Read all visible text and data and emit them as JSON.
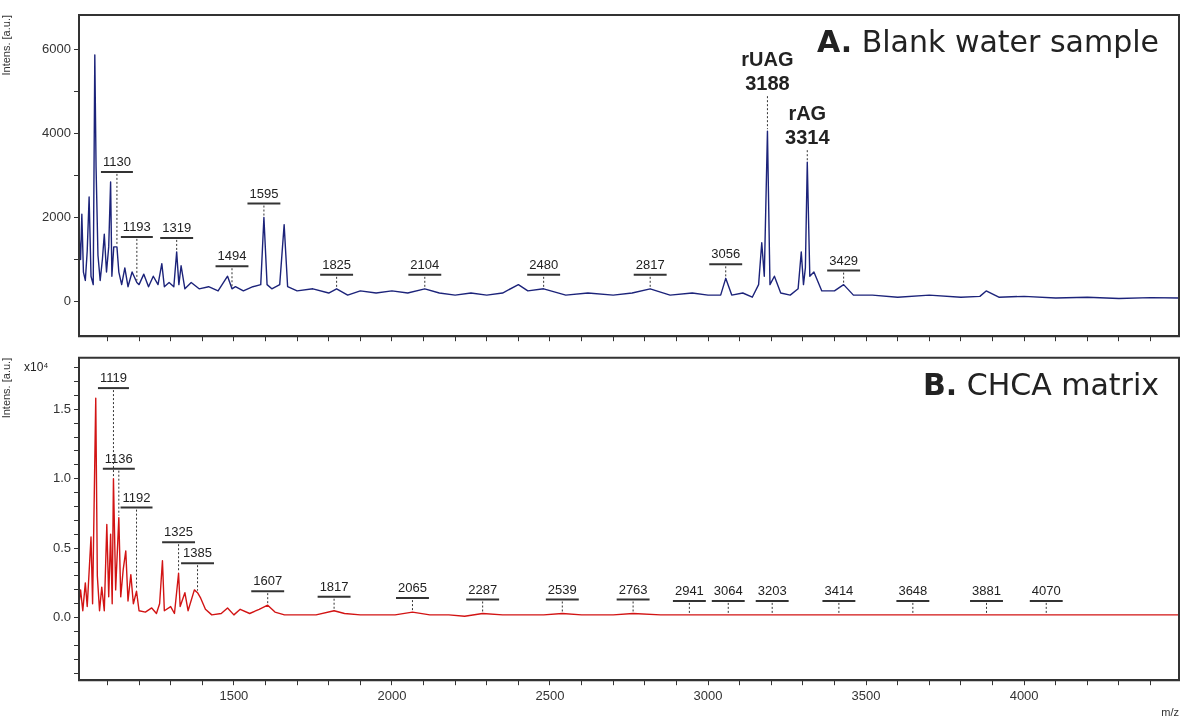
{
  "chart_data": [
    {
      "type": "line",
      "title": "A. Blank water sample",
      "ylabel": "Intens. [a.u.]",
      "xlim": [
        1010,
        4490
      ],
      "ylim": [
        -830,
        6830
      ],
      "xticks": [
        {
          "value": 1100,
          "label": null
        },
        {
          "value": 1200,
          "label": null
        },
        {
          "value": 1300,
          "label": null
        },
        {
          "value": 1400,
          "label": null
        },
        {
          "value": 1500,
          "label": null
        },
        {
          "value": 1600,
          "label": null
        },
        {
          "value": 1700,
          "label": null
        },
        {
          "value": 1800,
          "label": null
        },
        {
          "value": 1900,
          "label": null
        },
        {
          "value": 2000,
          "label": null
        },
        {
          "value": 2100,
          "label": null
        },
        {
          "value": 2200,
          "label": null
        },
        {
          "value": 2300,
          "label": null
        },
        {
          "value": 2400,
          "label": null
        },
        {
          "value": 2500,
          "label": null
        },
        {
          "value": 2600,
          "label": null
        },
        {
          "value": 2700,
          "label": null
        },
        {
          "value": 2800,
          "label": null
        },
        {
          "value": 2900,
          "label": null
        },
        {
          "value": 3000,
          "label": null
        },
        {
          "value": 3100,
          "label": null
        },
        {
          "value": 3200,
          "label": null
        },
        {
          "value": 3300,
          "label": null
        },
        {
          "value": 3400,
          "label": null
        },
        {
          "value": 3500,
          "label": null
        },
        {
          "value": 3600,
          "label": null
        },
        {
          "value": 3700,
          "label": null
        },
        {
          "value": 3800,
          "label": null
        },
        {
          "value": 3900,
          "label": null
        },
        {
          "value": 4000,
          "label": null
        },
        {
          "value": 4100,
          "label": null
        },
        {
          "value": 4200,
          "label": null
        },
        {
          "value": 4300,
          "label": null
        },
        {
          "value": 4400,
          "label": null
        }
      ],
      "yticks": [
        0,
        {
          "value": 1000,
          "label": null
        },
        2000,
        {
          "value": 3000,
          "label": null
        },
        4000,
        {
          "value": 5000,
          "label": null
        },
        6000
      ],
      "tick_labels": "y",
      "marker": "none",
      "series": [
        {
          "color": "#1c237a",
          "x": [
            1010,
            1015,
            1019,
            1024,
            1030,
            1036,
            1042,
            1048,
            1055,
            1060,
            1064,
            1070,
            1077,
            1084,
            1090,
            1097,
            1104,
            1110,
            1114,
            1120,
            1130,
            1136,
            1145,
            1155,
            1165,
            1178,
            1193,
            1200,
            1215,
            1230,
            1245,
            1260,
            1272,
            1280,
            1295,
            1310,
            1319,
            1326,
            1333,
            1345,
            1365,
            1390,
            1420,
            1450,
            1480,
            1494,
            1505,
            1530,
            1560,
            1585,
            1595,
            1605,
            1620,
            1645,
            1659,
            1670,
            1700,
            1750,
            1800,
            1825,
            1860,
            1900,
            1950,
            2000,
            2050,
            2104,
            2150,
            2200,
            2250,
            2300,
            2350,
            2400,
            2430,
            2480,
            2550,
            2620,
            2700,
            2760,
            2817,
            2880,
            2950,
            3000,
            3040,
            3056,
            3075,
            3110,
            3140,
            3160,
            3170,
            3178,
            3188,
            3196,
            3210,
            3230,
            3260,
            3285,
            3295,
            3302,
            3308,
            3314,
            3322,
            3335,
            3360,
            3400,
            3429,
            3460,
            3520,
            3600,
            3700,
            3800,
            3860,
            3880,
            3920,
            4000,
            4100,
            4200,
            4300,
            4400,
            4490
          ],
          "values": [
            1600,
            1000,
            2080,
            700,
            500,
            1200,
            2490,
            600,
            400,
            5880,
            3200,
            1100,
            500,
            1000,
            1600,
            700,
            1300,
            2850,
            600,
            1300,
            1300,
            700,
            400,
            800,
            350,
            700,
            450,
            400,
            650,
            350,
            600,
            400,
            900,
            350,
            450,
            350,
            1180,
            400,
            850,
            300,
            450,
            300,
            350,
            250,
            600,
            300,
            350,
            250,
            350,
            400,
            2000,
            400,
            300,
            400,
            1830,
            350,
            250,
            300,
            200,
            300,
            150,
            250,
            200,
            250,
            200,
            300,
            200,
            150,
            200,
            150,
            200,
            400,
            250,
            300,
            150,
            200,
            150,
            200,
            300,
            150,
            200,
            150,
            150,
            550,
            150,
            200,
            100,
            400,
            1400,
            600,
            4060,
            400,
            600,
            200,
            150,
            300,
            1180,
            400,
            800,
            3320,
            600,
            700,
            250,
            250,
            400,
            150,
            150,
            100,
            150,
            100,
            120,
            250,
            100,
            120,
            80,
            100,
            70,
            90,
            80
          ]
        }
      ],
      "annotations": [
        {
          "text": "1130",
          "x": 1130,
          "y": 1300
        },
        {
          "text": "1193",
          "x": 1193,
          "y": 450
        },
        {
          "text": "1319",
          "x": 1319,
          "y": 1180
        },
        {
          "text": "1494",
          "x": 1494,
          "y": 300
        },
        {
          "text": "1595",
          "x": 1595,
          "y": 2000
        },
        {
          "text": "1825",
          "x": 1825,
          "y": 300
        },
        {
          "text": "2104",
          "x": 2104,
          "y": 300
        },
        {
          "text": "2480",
          "x": 2480,
          "y": 300
        },
        {
          "text": "2817",
          "x": 2817,
          "y": 300
        },
        {
          "text": "3056",
          "x": 3056,
          "y": 550
        },
        {
          "text": "3429",
          "x": 3429,
          "y": 400
        },
        {
          "text": "rUAG\n3188",
          "x": 3188,
          "y": 4060
        },
        {
          "text": "rAG\n3314",
          "x": 3314,
          "y": 3320
        }
      ]
    },
    {
      "type": "line",
      "title": "B. CHCA matrix",
      "ylabel": "Intens. [a.u.]",
      "xlabel": "m/z",
      "xlim": [
        1010,
        4490
      ],
      "ylim": [
        -0.45,
        1.87
      ],
      "xticks": [
        {
          "value": 1100,
          "label": null
        },
        {
          "value": 1200,
          "label": null
        },
        {
          "value": 1300,
          "label": null
        },
        {
          "value": 1400,
          "label": null
        },
        1500,
        {
          "value": 1600,
          "label": null
        },
        {
          "value": 1700,
          "label": null
        },
        {
          "value": 1800,
          "label": null
        },
        {
          "value": 1900,
          "label": null
        },
        2000,
        {
          "value": 2100,
          "label": null
        },
        {
          "value": 2200,
          "label": null
        },
        {
          "value": 2300,
          "label": null
        },
        {
          "value": 2400,
          "label": null
        },
        2500,
        {
          "value": 2600,
          "label": null
        },
        {
          "value": 2700,
          "label": null
        },
        {
          "value": 2800,
          "label": null
        },
        {
          "value": 2900,
          "label": null
        },
        3000,
        {
          "value": 3100,
          "label": null
        },
        {
          "value": 3200,
          "label": null
        },
        {
          "value": 3300,
          "label": null
        },
        {
          "value": 3400,
          "label": null
        },
        3500,
        {
          "value": 3600,
          "label": null
        },
        {
          "value": 3700,
          "label": null
        },
        {
          "value": 3800,
          "label": null
        },
        {
          "value": 3900,
          "label": null
        },
        4000,
        {
          "value": 4100,
          "label": null
        },
        {
          "value": 4200,
          "label": null
        },
        {
          "value": 4300,
          "label": null
        },
        {
          "value": 4400,
          "label": null
        }
      ],
      "yticks": [
        {
          "value": -0.4,
          "label": null
        },
        {
          "value": -0.3,
          "label": null
        },
        {
          "value": -0.2,
          "label": null
        },
        {
          "value": -0.1,
          "label": null
        },
        {
          "value": 0,
          "label": "0.0"
        },
        {
          "value": 0.1,
          "label": null
        },
        {
          "value": 0.2,
          "label": null
        },
        {
          "value": 0.3,
          "label": null
        },
        {
          "value": 0.4,
          "label": null
        },
        0.5,
        {
          "value": 0.6,
          "label": null
        },
        {
          "value": 0.7,
          "label": null
        },
        {
          "value": 0.8,
          "label": null
        },
        {
          "value": 0.9,
          "label": null
        },
        {
          "value": 1,
          "label": "1.0"
        },
        {
          "value": 1.1,
          "label": null
        },
        {
          "value": 1.2,
          "label": null
        },
        {
          "value": 1.3,
          "label": null
        },
        {
          "value": 1.4,
          "label": null
        },
        1.5,
        {
          "value": 1.6,
          "label": null
        },
        {
          "value": 1.7,
          "label": null
        },
        {
          "value": 1.8,
          "label": null
        }
      ],
      "marker": "none",
      "series": [
        {
          "color": "#d21414",
          "x": [
            1010,
            1015,
            1022,
            1030,
            1036,
            1048,
            1053,
            1063,
            1068,
            1075,
            1082,
            1090,
            1098,
            1104,
            1110,
            1115,
            1119,
            1126,
            1136,
            1142,
            1150,
            1158,
            1165,
            1174,
            1182,
            1192,
            1200,
            1220,
            1240,
            1255,
            1265,
            1274,
            1280,
            1300,
            1312,
            1325,
            1330,
            1345,
            1355,
            1375,
            1385,
            1395,
            1410,
            1430,
            1460,
            1480,
            1500,
            1520,
            1550,
            1580,
            1607,
            1630,
            1660,
            1700,
            1760,
            1817,
            1850,
            1900,
            1960,
            2010,
            2065,
            2120,
            2180,
            2230,
            2287,
            2350,
            2420,
            2480,
            2539,
            2600,
            2700,
            2763,
            2850,
            2941,
            3064,
            3203,
            3300,
            3414,
            3530,
            3648,
            3760,
            3881,
            4000,
            4070,
            4200,
            4350,
            4490
          ],
          "values": [
            0.1,
            0.2,
            0.05,
            0.25,
            0.08,
            0.58,
            0.1,
            1.58,
            0.3,
            0.05,
            0.22,
            0.05,
            0.67,
            0.15,
            0.6,
            0.1,
            1.0,
            0.2,
            0.72,
            0.15,
            0.35,
            0.48,
            0.12,
            0.31,
            0.1,
            0.19,
            0.05,
            0.04,
            0.07,
            0.03,
            0.1,
            0.41,
            0.05,
            0.08,
            0.03,
            0.32,
            0.08,
            0.18,
            0.05,
            0.2,
            0.18,
            0.14,
            0.06,
            0.02,
            0.03,
            0.07,
            0.02,
            0.06,
            0.03,
            0.06,
            0.09,
            0.04,
            0.02,
            0.02,
            0.02,
            0.05,
            0.03,
            0.02,
            0.02,
            0.02,
            0.04,
            0.02,
            0.02,
            0.01,
            0.03,
            0.02,
            0.02,
            0.02,
            0.03,
            0.02,
            0.02,
            0.03,
            0.02,
            0.02,
            0.02,
            0.02,
            0.02,
            0.02,
            0.02,
            0.02,
            0.02,
            0.02,
            0.02,
            0.02,
            0.02,
            0.02,
            0.02
          ]
        }
      ],
      "annotations": [
        "x10⁴",
        {
          "text": "1119",
          "x": 1119,
          "y": 1.0
        },
        {
          "text": "1136",
          "x": 1136,
          "y": 0.72
        },
        {
          "text": "1192",
          "x": 1192,
          "y": 0.19
        },
        {
          "text": "1325",
          "x": 1325,
          "y": 0.32
        },
        {
          "text": "1385",
          "x": 1385,
          "y": 0.18
        },
        {
          "text": "1607",
          "x": 1607,
          "y": 0.09
        },
        {
          "text": "1817",
          "x": 1817,
          "y": 0.05
        },
        {
          "text": "2065",
          "x": 2065,
          "y": 0.04
        },
        {
          "text": "2287",
          "x": 2287,
          "y": 0.03
        },
        {
          "text": "2539",
          "x": 2539,
          "y": 0.03
        },
        {
          "text": "2763",
          "x": 2763,
          "y": 0.03
        },
        {
          "text": "2941",
          "x": 2941,
          "y": 0.02
        },
        {
          "text": "3064",
          "x": 3064,
          "y": 0.02
        },
        {
          "text": "3203",
          "x": 3203,
          "y": 0.02
        },
        {
          "text": "3414",
          "x": 3414,
          "y": 0.02
        },
        {
          "text": "3648",
          "x": 3648,
          "y": 0.02
        },
        {
          "text": "3881",
          "x": 3881,
          "y": 0.02
        },
        {
          "text": "4070",
          "x": 4070,
          "y": 0.02
        }
      ]
    }
  ]
}
